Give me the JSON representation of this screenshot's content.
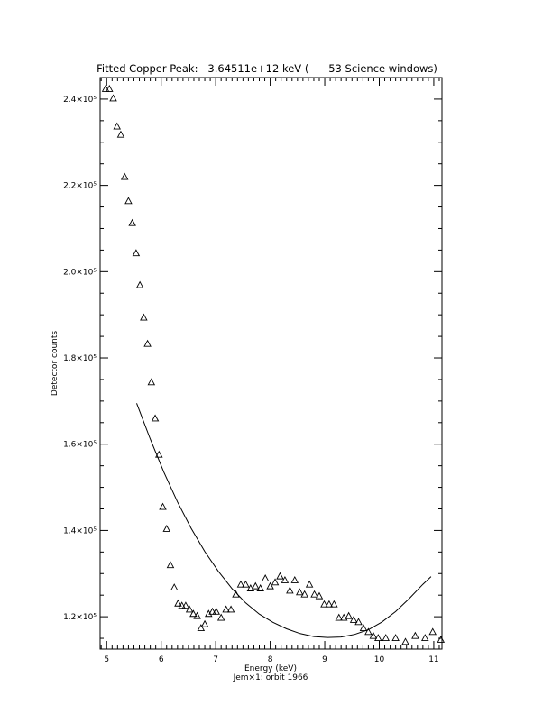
{
  "chart_data": {
    "type": "scatter",
    "title": "Fitted Copper Peak:   3.64511e+12 keV (      53 Science windows)",
    "xlabel": "Energy (keV)",
    "ylabel": "Detector counts",
    "subtitle": "Jem×1: orbit 1966",
    "xlim": [
      4.88,
      11.15
    ],
    "ylim": [
      112500,
      245000
    ],
    "x_ticks": [
      5,
      6,
      7,
      8,
      9,
      10,
      11
    ],
    "x_tick_labels": [
      "5",
      "6",
      "7",
      "8",
      "9",
      "10",
      "11"
    ],
    "y_ticks": [
      120000,
      140000,
      160000,
      180000,
      200000,
      220000,
      240000
    ],
    "y_tick_labels": [
      "1.2×10⁵",
      "1.4×10⁵",
      "1.6×10⁵",
      "1.8×10⁵",
      "2.0×10⁵",
      "2.2×10⁵",
      "2.4×10⁵"
    ],
    "grid": false,
    "series": [
      {
        "marker": "triangle",
        "x": [
          4.98,
          5.05,
          5.12,
          5.19,
          5.26,
          5.33,
          5.4,
          5.47,
          5.54,
          5.61,
          5.68,
          5.75,
          5.82,
          5.89,
          5.96,
          6.03,
          6.1,
          6.17,
          6.24,
          6.31,
          6.38,
          6.45,
          6.52,
          6.59,
          6.66,
          6.73,
          6.8,
          6.87,
          6.94,
          7.01,
          7.1,
          7.19,
          7.28,
          7.37,
          7.46,
          7.55,
          7.64,
          7.73,
          7.82,
          7.91,
          8.0,
          8.09,
          8.18,
          8.27,
          8.36,
          8.45,
          8.54,
          8.63,
          8.72,
          8.81,
          8.9,
          8.99,
          9.08,
          9.17,
          9.26,
          9.35,
          9.44,
          9.53,
          9.62,
          9.71,
          9.8,
          9.89,
          9.98,
          10.12,
          10.3,
          10.48,
          10.66,
          10.84,
          10.98,
          11.13
        ],
        "y": [
          242300,
          242300,
          240100,
          233600,
          231700,
          221900,
          216300,
          211200,
          204200,
          196800,
          189300,
          183200,
          174300,
          165900,
          157500,
          145400,
          140300,
          131900,
          126700,
          123000,
          122500,
          122500,
          121600,
          120600,
          120100,
          117300,
          118200,
          120600,
          121100,
          121100,
          119700,
          121600,
          121600,
          125100,
          127400,
          127400,
          126500,
          127000,
          126500,
          128800,
          127000,
          127900,
          129300,
          128400,
          126000,
          128400,
          125600,
          125100,
          127400,
          125100,
          124700,
          122800,
          122800,
          122800,
          119700,
          119700,
          120100,
          119200,
          118700,
          117300,
          116400,
          115500,
          115000,
          115000,
          115000,
          114100,
          115500,
          115000,
          116400,
          114600
        ]
      },
      {
        "marker": "line",
        "x": [
          5.55,
          5.8,
          6.05,
          6.3,
          6.55,
          6.8,
          7.05,
          7.3,
          7.55,
          7.8,
          8.05,
          8.3,
          8.55,
          8.8,
          9.05,
          9.3,
          9.55,
          9.8,
          10.05,
          10.3,
          10.55,
          10.8,
          10.95
        ],
        "y": [
          169500,
          161200,
          153500,
          146600,
          140500,
          135100,
          130500,
          126500,
          123200,
          120600,
          118700,
          117200,
          116100,
          115400,
          115200,
          115300,
          115900,
          117000,
          118800,
          121200,
          124200,
          127500,
          129300
        ]
      }
    ]
  }
}
